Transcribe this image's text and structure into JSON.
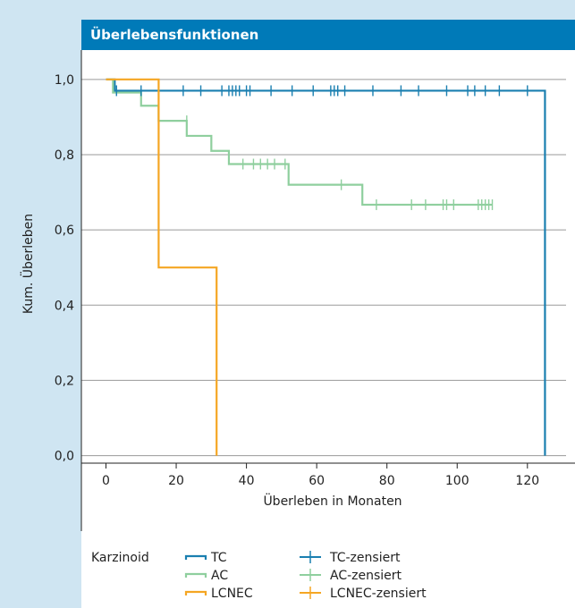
{
  "title": "Überlebensfunktionen",
  "chart_data": {
    "type": "line",
    "subtype": "kaplan-meier",
    "title": "Überlebensfunktionen",
    "xlabel": "Überleben in Monaten",
    "ylabel": "Kum. Überleben",
    "xlim": [
      -7,
      131
    ],
    "ylim": [
      -0.02,
      1.04
    ],
    "x_ticks": [
      0,
      20,
      40,
      60,
      80,
      100,
      120
    ],
    "y_ticks": [
      0.0,
      0.2,
      0.4,
      0.6,
      0.8,
      1.0
    ],
    "y_tick_labels": [
      "0,0",
      "0,2",
      "0,4",
      "0,6",
      "0,8",
      "1,0"
    ],
    "grid": "horizontal",
    "legend_title": "Karzinoid",
    "legend_placement": "bottom",
    "series": [
      {
        "name": "TC",
        "color": "#1a7fb0",
        "steps": [
          [
            0,
            1.0
          ],
          [
            2.5,
            0.97
          ],
          [
            125,
            0.0
          ]
        ],
        "end_x": 125,
        "censored_name": "TC-zensiert",
        "censored_x": [
          3,
          10,
          22,
          27,
          33,
          35,
          36,
          37,
          38,
          40,
          41,
          47,
          53,
          59,
          64,
          65,
          66,
          68,
          76,
          84,
          89,
          97,
          103,
          105,
          108,
          112,
          120
        ],
        "censored_y": 0.97
      },
      {
        "name": "AC",
        "color": "#8fcf9e",
        "steps": [
          [
            0,
            1.0
          ],
          [
            2,
            0.965
          ],
          [
            10,
            0.93
          ],
          [
            15,
            0.89
          ],
          [
            23,
            0.85
          ],
          [
            30,
            0.81
          ],
          [
            35,
            0.775
          ],
          [
            52,
            0.72
          ],
          [
            73,
            0.667
          ]
        ],
        "end_x": 110,
        "censored_name": "AC-zensiert",
        "censored": [
          [
            23,
            0.89
          ],
          [
            39,
            0.775
          ],
          [
            42,
            0.775
          ],
          [
            44,
            0.775
          ],
          [
            46,
            0.775
          ],
          [
            48,
            0.775
          ],
          [
            51,
            0.775
          ],
          [
            67,
            0.72
          ],
          [
            77,
            0.667
          ],
          [
            87,
            0.667
          ],
          [
            91,
            0.667
          ],
          [
            96,
            0.667
          ],
          [
            97,
            0.667
          ],
          [
            99,
            0.667
          ],
          [
            106,
            0.667
          ],
          [
            107,
            0.667
          ],
          [
            108,
            0.667
          ],
          [
            109,
            0.667
          ],
          [
            110,
            0.667
          ]
        ]
      },
      {
        "name": "LCNEC",
        "color": "#f5a623",
        "steps": [
          [
            0,
            1.0
          ],
          [
            15,
            0.5
          ],
          [
            31.5,
            0.0
          ]
        ],
        "end_x": 31.5,
        "censored_name": "LCNEC-zensiert",
        "censored": []
      }
    ]
  }
}
